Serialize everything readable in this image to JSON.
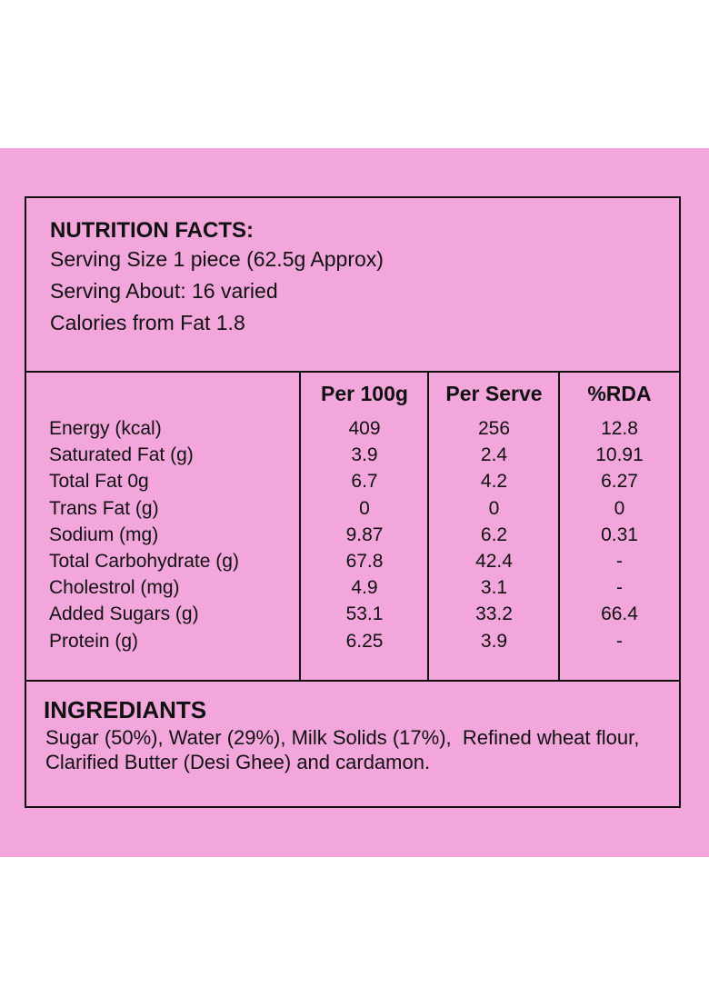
{
  "colors": {
    "panel_background": "#f2a6dc",
    "border": "#111111"
  },
  "header": {
    "title": "NUTRITION FACTS:",
    "serving_size": "Serving Size 1 piece (62.5g Approx)",
    "serving_about": "Serving About: 16 varied",
    "calories_from_fat": "Calories from Fat 1.8"
  },
  "table": {
    "columns": [
      "Per 100g",
      "Per Serve",
      "%RDA"
    ],
    "rows": [
      {
        "label": "Energy (kcal)",
        "per100": "409",
        "perServe": "256",
        "rda": "12.8"
      },
      {
        "label": "Saturated Fat (g)",
        "per100": "3.9",
        "perServe": "2.4",
        "rda": "10.91"
      },
      {
        "label": "Total Fat 0g",
        "per100": "6.7",
        "perServe": "4.2",
        "rda": "6.27"
      },
      {
        "label": "Trans Fat (g)",
        "per100": "0",
        "perServe": "0",
        "rda": "0"
      },
      {
        "label": "Sodium (mg)",
        "per100": "9.87",
        "perServe": "6.2",
        "rda": "0.31"
      },
      {
        "label": "Total Carbohydrate (g)",
        "per100": "67.8",
        "perServe": "42.4",
        "rda": "-"
      },
      {
        "label": "Cholestrol (mg)",
        "per100": "4.9",
        "perServe": "3.1",
        "rda": "-"
      },
      {
        "label": "Added Sugars (g)",
        "per100": "53.1",
        "perServe": "33.2",
        "rda": "66.4"
      },
      {
        "label": "Protein (g)",
        "per100": "6.25",
        "perServe": "3.9",
        "rda": "-"
      }
    ]
  },
  "ingredients": {
    "title": "INGREDIANTS",
    "text": "Sugar (50%), Water (29%), Milk Solids (17%),  Refined wheat flour, Clarified Butter (Desi Ghee) and cardamon."
  }
}
